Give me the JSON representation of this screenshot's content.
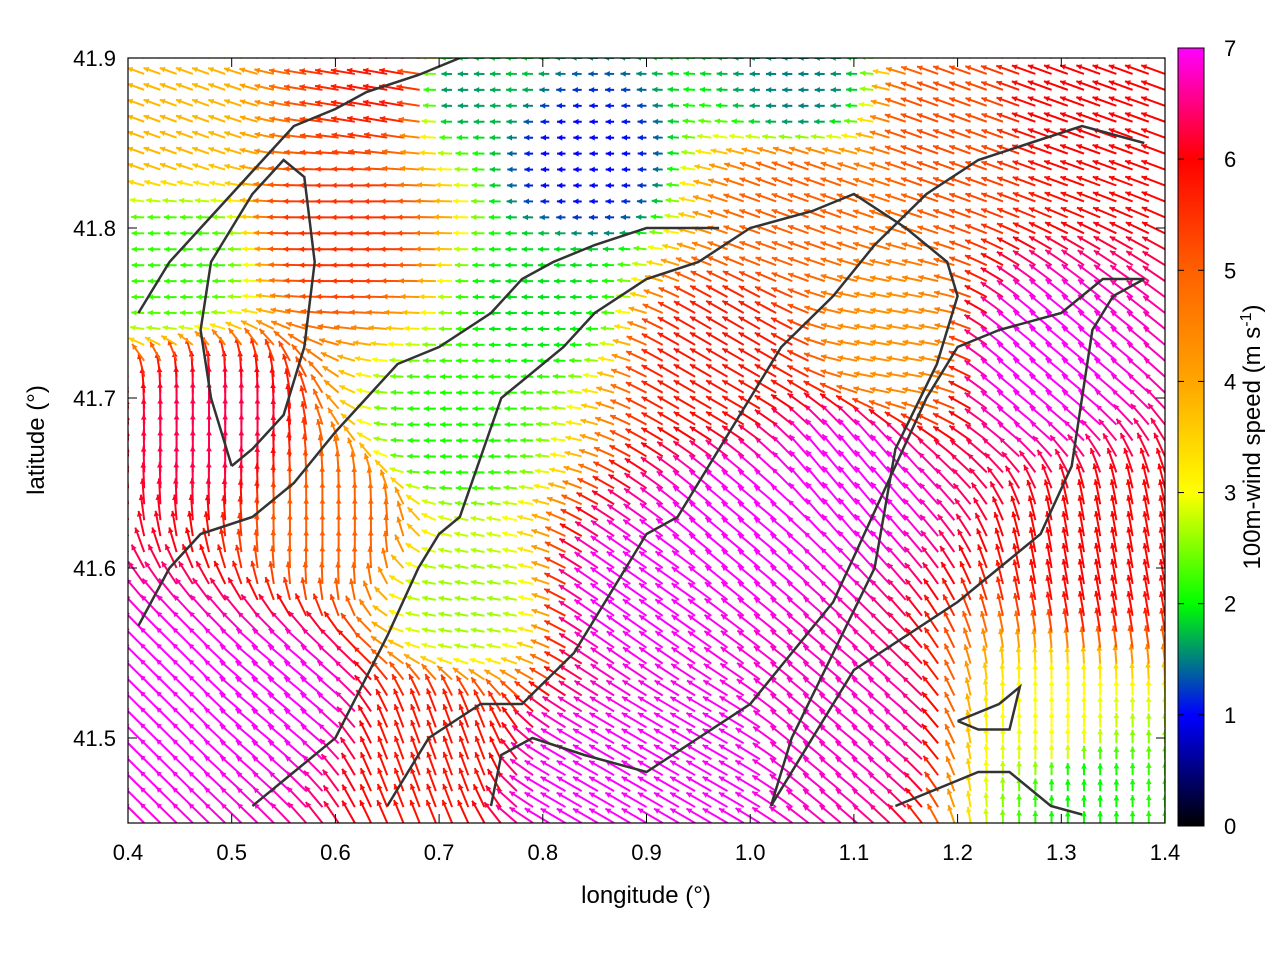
{
  "chart_data": {
    "type": "vector-field",
    "xlabel": "longitude (°)",
    "ylabel": "latitude (°)",
    "xlim": [
      0.4,
      1.4
    ],
    "ylim": [
      41.45,
      41.9
    ],
    "x_ticks": [
      0.4,
      0.5,
      0.6,
      0.7,
      0.8,
      0.9,
      1.0,
      1.1,
      1.2,
      1.3,
      1.4
    ],
    "x_tick_labels": [
      "0.4",
      "0.5",
      "0.6",
      "0.7",
      "0.8",
      "0.9",
      "1.0",
      "1.1",
      "1.2",
      "1.3",
      "1.4"
    ],
    "y_ticks": [
      41.5,
      41.6,
      41.7,
      41.8,
      41.9
    ],
    "y_tick_labels": [
      "41.5",
      "41.6",
      "41.7",
      "41.8",
      "41.9"
    ],
    "grid": false,
    "colorbar": {
      "label_main": "100m-wind speed (m s",
      "label_sup": "-1",
      "label_end": ")",
      "range": [
        0,
        7
      ],
      "ticks": [
        0,
        1,
        2,
        3,
        4,
        5,
        6,
        7
      ],
      "tick_labels": [
        "0",
        "1",
        "2",
        "3",
        "4",
        "5",
        "6",
        "7"
      ],
      "stops": [
        {
          "v": 0.0,
          "color": "#000000"
        },
        {
          "v": 1.0,
          "color": "#0000ff"
        },
        {
          "v": 1.5,
          "color": "#008080"
        },
        {
          "v": 2.0,
          "color": "#00ff00"
        },
        {
          "v": 3.0,
          "color": "#ffff00"
        },
        {
          "v": 4.0,
          "color": "#ffa500"
        },
        {
          "v": 5.0,
          "color": "#ff6000"
        },
        {
          "v": 6.0,
          "color": "#ff0000"
        },
        {
          "v": 7.0,
          "color": "#ff00ff"
        }
      ]
    },
    "field_regions": [
      {
        "lon": 0.48,
        "lat": 41.68,
        "speed": 6.3,
        "dir_deg": 90
      },
      {
        "lon": 0.45,
        "lat": 41.52,
        "speed": 7.0,
        "dir_deg": 135
      },
      {
        "lon": 0.55,
        "lat": 41.52,
        "speed": 7.0,
        "dir_deg": 140
      },
      {
        "lon": 0.6,
        "lat": 41.62,
        "speed": 5.0,
        "dir_deg": 90
      },
      {
        "lon": 0.62,
        "lat": 41.8,
        "speed": 5.5,
        "dir_deg": 180
      },
      {
        "lon": 0.66,
        "lat": 41.88,
        "speed": 5.8,
        "dir_deg": 170
      },
      {
        "lon": 0.44,
        "lat": 41.86,
        "speed": 3.8,
        "dir_deg": 160
      },
      {
        "lon": 0.45,
        "lat": 41.78,
        "speed": 2.2,
        "dir_deg": 180
      },
      {
        "lon": 0.72,
        "lat": 41.68,
        "speed": 2.1,
        "dir_deg": 180
      },
      {
        "lon": 0.73,
        "lat": 41.58,
        "speed": 2.6,
        "dir_deg": 170
      },
      {
        "lon": 0.8,
        "lat": 41.76,
        "speed": 1.9,
        "dir_deg": 180
      },
      {
        "lon": 0.84,
        "lat": 41.84,
        "speed": 1.0,
        "dir_deg": 180
      },
      {
        "lon": 0.72,
        "lat": 41.88,
        "speed": 1.6,
        "dir_deg": 180
      },
      {
        "lon": 1.05,
        "lat": 41.88,
        "speed": 1.5,
        "dir_deg": 180
      },
      {
        "lon": 0.98,
        "lat": 41.72,
        "speed": 5.8,
        "dir_deg": 150
      },
      {
        "lon": 1.05,
        "lat": 41.82,
        "speed": 5.0,
        "dir_deg": 160
      },
      {
        "lon": 1.2,
        "lat": 41.86,
        "speed": 5.2,
        "dir_deg": 160
      },
      {
        "lon": 1.32,
        "lat": 41.87,
        "speed": 6.0,
        "dir_deg": 160
      },
      {
        "lon": 1.15,
        "lat": 41.73,
        "speed": 4.3,
        "dir_deg": 170
      },
      {
        "lon": 0.9,
        "lat": 41.58,
        "speed": 7.0,
        "dir_deg": 145
      },
      {
        "lon": 1.0,
        "lat": 41.62,
        "speed": 7.0,
        "dir_deg": 140
      },
      {
        "lon": 1.1,
        "lat": 41.65,
        "speed": 7.0,
        "dir_deg": 130
      },
      {
        "lon": 1.28,
        "lat": 41.72,
        "speed": 7.0,
        "dir_deg": 140
      },
      {
        "lon": 1.34,
        "lat": 41.6,
        "speed": 6.0,
        "dir_deg": 100
      },
      {
        "lon": 1.3,
        "lat": 41.5,
        "speed": 3.0,
        "dir_deg": 90
      },
      {
        "lon": 1.32,
        "lat": 41.47,
        "speed": 2.0,
        "dir_deg": 90
      },
      {
        "lon": 0.95,
        "lat": 41.48,
        "speed": 7.0,
        "dir_deg": 150
      },
      {
        "lon": 0.7,
        "lat": 41.49,
        "speed": 5.8,
        "dir_deg": 110
      },
      {
        "lon": 0.85,
        "lat": 41.47,
        "speed": 7.0,
        "dir_deg": 150
      },
      {
        "lon": 1.1,
        "lat": 41.5,
        "speed": 6.8,
        "dir_deg": 140
      }
    ],
    "contours": [
      [
        [
          0.41,
          41.566
        ],
        [
          0.44,
          41.6
        ],
        [
          0.47,
          41.62
        ],
        [
          0.52,
          41.63
        ],
        [
          0.56,
          41.65
        ],
        [
          0.6,
          41.68
        ],
        [
          0.63,
          41.7
        ],
        [
          0.66,
          41.72
        ],
        [
          0.7,
          41.73
        ],
        [
          0.75,
          41.75
        ],
        [
          0.78,
          41.77
        ],
        [
          0.81,
          41.78
        ],
        [
          0.85,
          41.79
        ],
        [
          0.9,
          41.8
        ],
        [
          0.95,
          41.8
        ],
        [
          0.97,
          41.8
        ]
      ],
      [
        [
          0.52,
          41.46
        ],
        [
          0.56,
          41.48
        ],
        [
          0.6,
          41.5
        ],
        [
          0.65,
          41.56
        ],
        [
          0.68,
          41.6
        ],
        [
          0.7,
          41.62
        ],
        [
          0.72,
          41.63
        ],
        [
          0.76,
          41.7
        ],
        [
          0.78,
          41.71
        ],
        [
          0.82,
          41.73
        ],
        [
          0.85,
          41.75
        ],
        [
          0.9,
          41.77
        ],
        [
          0.95,
          41.78
        ],
        [
          1.0,
          41.8
        ],
        [
          1.06,
          41.81
        ],
        [
          1.1,
          41.82
        ],
        [
          1.15,
          41.8
        ],
        [
          1.19,
          41.78
        ],
        [
          1.2,
          41.76
        ],
        [
          1.18,
          41.72
        ],
        [
          1.14,
          41.67
        ],
        [
          1.12,
          41.6
        ],
        [
          1.08,
          41.55
        ],
        [
          1.04,
          41.5
        ],
        [
          1.02,
          41.46
        ]
      ],
      [
        [
          0.65,
          41.46
        ],
        [
          0.69,
          41.5
        ],
        [
          0.74,
          41.52
        ],
        [
          0.78,
          41.52
        ],
        [
          0.83,
          41.55
        ],
        [
          0.88,
          41.6
        ],
        [
          0.9,
          41.62
        ],
        [
          0.93,
          41.63
        ],
        [
          0.96,
          41.66
        ],
        [
          1.0,
          41.7
        ],
        [
          1.03,
          41.73
        ],
        [
          1.08,
          41.76
        ],
        [
          1.12,
          41.79
        ],
        [
          1.17,
          41.82
        ],
        [
          1.22,
          41.84
        ],
        [
          1.27,
          41.85
        ],
        [
          1.32,
          41.86
        ],
        [
          1.38,
          41.85
        ]
      ],
      [
        [
          0.41,
          41.75
        ],
        [
          0.44,
          41.78
        ],
        [
          0.47,
          41.8
        ],
        [
          0.5,
          41.82
        ],
        [
          0.53,
          41.84
        ],
        [
          0.56,
          41.86
        ],
        [
          0.6,
          41.87
        ],
        [
          0.63,
          41.88
        ],
        [
          0.68,
          41.89
        ],
        [
          0.72,
          41.9
        ]
      ],
      [
        [
          0.5,
          41.66
        ],
        [
          0.48,
          41.7
        ],
        [
          0.47,
          41.74
        ],
        [
          0.48,
          41.78
        ],
        [
          0.5,
          41.8
        ],
        [
          0.52,
          41.82
        ],
        [
          0.55,
          41.84
        ],
        [
          0.57,
          41.83
        ],
        [
          0.58,
          41.78
        ],
        [
          0.57,
          41.73
        ],
        [
          0.55,
          41.69
        ],
        [
          0.52,
          41.67
        ],
        [
          0.5,
          41.66
        ]
      ],
      [
        [
          0.75,
          41.46
        ],
        [
          0.76,
          41.49
        ],
        [
          0.79,
          41.5
        ],
        [
          0.84,
          41.49
        ],
        [
          0.9,
          41.48
        ],
        [
          0.95,
          41.5
        ],
        [
          1.0,
          41.52
        ],
        [
          1.04,
          41.55
        ],
        [
          1.08,
          41.58
        ],
        [
          1.11,
          41.62
        ],
        [
          1.14,
          41.66
        ],
        [
          1.17,
          41.7
        ],
        [
          1.2,
          41.73
        ],
        [
          1.24,
          41.74
        ],
        [
          1.3,
          41.75
        ],
        [
          1.34,
          41.77
        ],
        [
          1.38,
          41.77
        ]
      ],
      [
        [
          1.02,
          41.46
        ],
        [
          1.06,
          41.5
        ],
        [
          1.1,
          41.54
        ],
        [
          1.15,
          41.56
        ],
        [
          1.2,
          41.58
        ],
        [
          1.24,
          41.6
        ],
        [
          1.28,
          41.62
        ],
        [
          1.31,
          41.66
        ],
        [
          1.32,
          41.7
        ],
        [
          1.33,
          41.74
        ],
        [
          1.35,
          41.76
        ],
        [
          1.38,
          41.77
        ]
      ],
      [
        [
          1.2,
          41.51
        ],
        [
          1.24,
          41.52
        ],
        [
          1.26,
          41.53
        ],
        [
          1.25,
          41.505
        ],
        [
          1.22,
          41.505
        ],
        [
          1.2,
          41.51
        ]
      ],
      [
        [
          1.14,
          41.46
        ],
        [
          1.18,
          41.47
        ],
        [
          1.22,
          41.48
        ],
        [
          1.25,
          41.48
        ],
        [
          1.27,
          41.47
        ],
        [
          1.29,
          41.46
        ],
        [
          1.32,
          41.455
        ]
      ]
    ]
  }
}
